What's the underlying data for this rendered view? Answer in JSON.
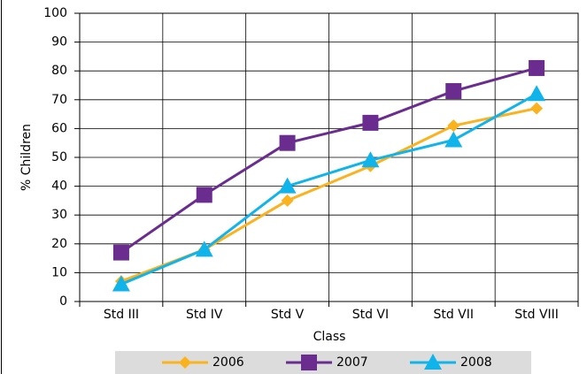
{
  "chart_data": {
    "type": "line",
    "x_label": "Class",
    "y_label": "% Children",
    "categories": [
      "Std III",
      "Std IV",
      "Std V",
      "Std VI",
      "Std VII",
      "Std VIII"
    ],
    "series": [
      {
        "name": "2006",
        "color": "#fbb21f",
        "marker": "diamond",
        "values": [
          7,
          18,
          35,
          47,
          61,
          67
        ]
      },
      {
        "name": "2007",
        "color": "#6a2c8f",
        "marker": "square",
        "values": [
          17,
          37,
          55,
          62,
          73,
          81
        ]
      },
      {
        "name": "2008",
        "color": "#10b4ea",
        "marker": "triangle",
        "values": [
          6,
          18,
          40,
          49,
          56,
          72
        ]
      }
    ],
    "ylim": [
      0,
      100
    ],
    "yticks": [
      0,
      10,
      20,
      30,
      40,
      50,
      60,
      70,
      80,
      90,
      100
    ],
    "grid": true,
    "legend": "bottom"
  }
}
